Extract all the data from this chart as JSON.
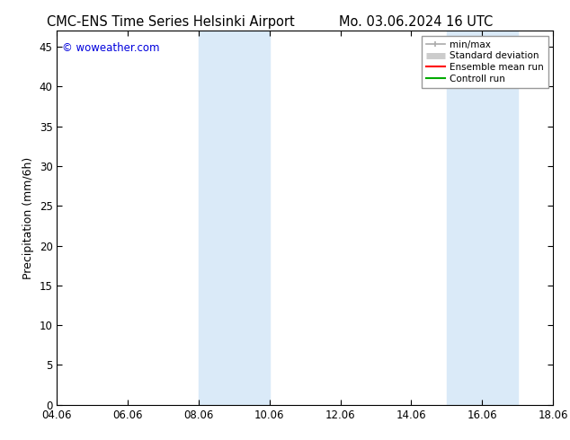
{
  "title_left": "CMC-ENS Time Series Helsinki Airport",
  "title_right": "Mo. 03.06.2024 16 UTC",
  "ylabel": "Precipitation (mm/6h)",
  "watermark": "© woweather.com",
  "watermark_color": "#0000dd",
  "background_color": "#ffffff",
  "plot_bg_color": "#ffffff",
  "shaded_band_color": "#daeaf8",
  "xlim_start": 4.06,
  "xlim_end": 18.06,
  "ylim_min": 0,
  "ylim_max": 47,
  "yticks": [
    0,
    5,
    10,
    15,
    20,
    25,
    30,
    35,
    40,
    45
  ],
  "xtick_labels": [
    "04.06",
    "06.06",
    "08.06",
    "10.06",
    "12.06",
    "14.06",
    "16.06",
    "18.06"
  ],
  "xtick_positions": [
    4.06,
    6.06,
    8.06,
    10.06,
    12.06,
    14.06,
    16.06,
    18.06
  ],
  "shaded_bands": [
    {
      "x_start": 8.06,
      "x_end": 10.06
    },
    {
      "x_start": 15.06,
      "x_end": 17.06
    }
  ],
  "legend_entries": [
    {
      "label": "min/max",
      "color": "#aaaaaa",
      "lw": 1.5,
      "style": "minmax"
    },
    {
      "label": "Standard deviation",
      "color": "#cccccc",
      "lw": 5,
      "style": "std"
    },
    {
      "label": "Ensemble mean run",
      "color": "#ff0000",
      "lw": 1.5,
      "style": "line"
    },
    {
      "label": "Controll run",
      "color": "#00aa00",
      "lw": 1.5,
      "style": "line"
    }
  ],
  "title_fontsize": 10.5,
  "tick_fontsize": 8.5,
  "label_fontsize": 9,
  "legend_fontsize": 7.5,
  "watermark_fontsize": 8.5
}
